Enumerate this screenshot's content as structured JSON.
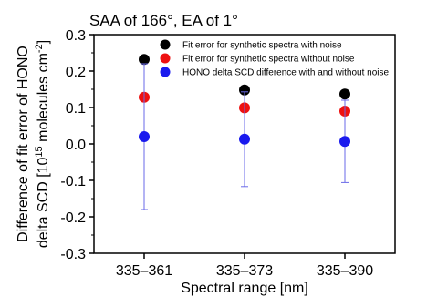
{
  "chart_data": {
    "type": "scatter",
    "title": "SAA of 166°, EA of 1°",
    "xlabel": "Spectral range [nm]",
    "ylabel_line1": "Difference of fit error of HONO",
    "ylabel_line2_prefix": "delta SCD [10",
    "ylabel_line2_sup1": "15",
    "ylabel_line2_mid": " molecules cm",
    "ylabel_line2_sup2": "-2",
    "ylabel_line2_suffix": "]",
    "categories": [
      "335–361",
      "335–373",
      "335–390"
    ],
    "ylim": [
      -0.3,
      0.3
    ],
    "yticks": [
      "-0.3",
      "-0.2",
      "-0.1",
      "0.0",
      "0.1",
      "0.2",
      "0.3"
    ],
    "ytick_values": [
      -0.3,
      -0.2,
      -0.1,
      0.0,
      0.1,
      0.2,
      0.3
    ],
    "grid": false,
    "legend_position": "top",
    "series": [
      {
        "name": "Fit error for synthetic spectra with noise",
        "color": "#000000",
        "values": [
          0.232,
          0.148,
          0.137
        ]
      },
      {
        "name": "Fit error for synthetic spectra without noise",
        "color": "#ee1111",
        "values": [
          0.128,
          0.099,
          0.09
        ]
      },
      {
        "name": "HONO delta SCD difference with and without noise",
        "color": "#1a1aee",
        "values": [
          0.02,
          0.013,
          0.007
        ],
        "error": [
          0.2,
          0.13,
          0.113
        ],
        "error_color": "#6a6ae8"
      }
    ]
  }
}
